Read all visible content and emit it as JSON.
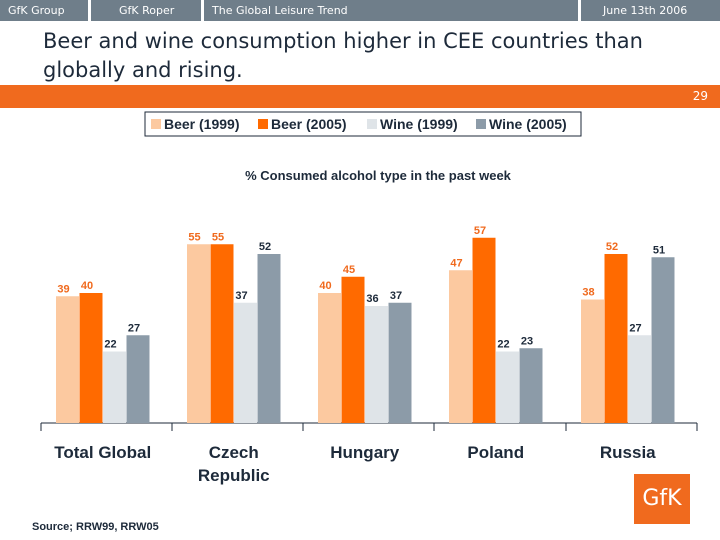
{
  "header": {
    "tabs": [
      "GfK Group",
      "GfK Roper",
      "The Global Leisure Trend",
      "June 13th 2006"
    ],
    "title": "Beer and wine consumption higher in CEE countries than globally and rising.",
    "page_number": "29"
  },
  "logo": {
    "text": "GfK"
  },
  "source": "Source; RRW99, RRW05",
  "colors": {
    "accent": "#f06a1e",
    "bar_beer_1999": "#fcc9a0",
    "bar_beer_2005": "#ff6a00",
    "bar_wine_1999": "#dfe4e8",
    "bar_wine_2005": "#8c9ba8"
  },
  "chart_data": {
    "type": "bar",
    "title": "% Consumed alcohol type in the past week",
    "categories": [
      "Total Global",
      "Czech\nRepublic",
      "Hungary",
      "Poland",
      "Russia"
    ],
    "series": [
      {
        "name": "Beer (1999)",
        "values": [
          39,
          55,
          40,
          47,
          38
        ],
        "color": "#fcc9a0",
        "label_color": "#f06a1e"
      },
      {
        "name": "Beer (2005)",
        "values": [
          40,
          55,
          45,
          57,
          52
        ],
        "color": "#ff6a00",
        "label_color": "#f06a1e"
      },
      {
        "name": "Wine (1999)",
        "values": [
          22,
          37,
          36,
          22,
          27
        ],
        "color": "#dfe4e8",
        "label_color": "#1d2a3a"
      },
      {
        "name": "Wine (2005)",
        "values": [
          27,
          52,
          37,
          23,
          51
        ],
        "color": "#8c9ba8",
        "label_color": "#1d2a3a"
      }
    ],
    "ylim": [
      0,
      60
    ],
    "legend_position": "top-center"
  }
}
